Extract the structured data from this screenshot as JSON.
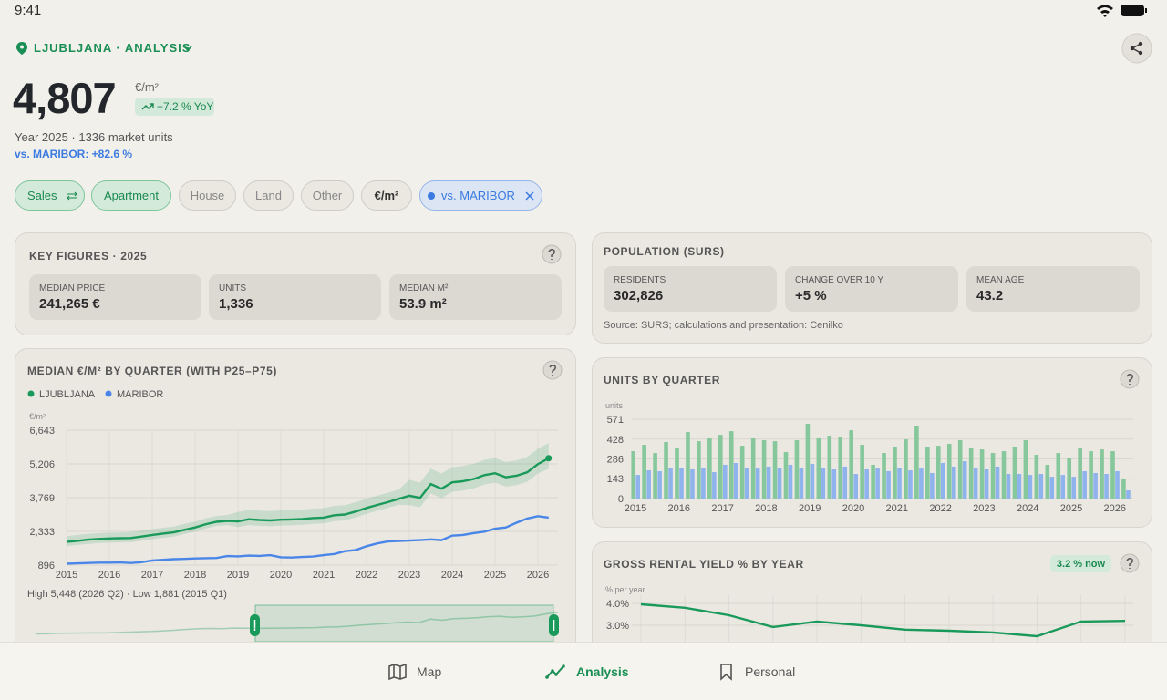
{
  "status_bar": {
    "time": "9:41"
  },
  "header": {
    "location": "LJUBLJANA · ANALYSIS"
  },
  "summary": {
    "price": "4,807",
    "unit": "€/m²",
    "change": "+7.2 % YoY",
    "details": "Year 2025 · 1336 market units",
    "comparison": "vs. MARIBOR: +82.6 %"
  },
  "filters": [
    "Sales",
    "Apartment",
    "House",
    "Land",
    "Other",
    "€/m²",
    "vs. MARIBOR"
  ],
  "key_figures": {
    "title": "KEY FIGURES · 2025",
    "items": [
      {
        "label": "MEDIAN PRICE",
        "value": "241,265 €"
      },
      {
        "label": "UNITS",
        "value": "1,336"
      },
      {
        "label": "MEDIAN M²",
        "value": "53.9 m²"
      }
    ]
  },
  "population": {
    "title": "POPULATION (SURS)",
    "items": [
      {
        "label": "RESIDENTS",
        "value": "302,826"
      },
      {
        "label": "CHANGE OVER 10 Y",
        "value": "+5 %"
      },
      {
        "label": "MEAN AGE",
        "value": "43.2"
      }
    ],
    "source": "Source: SURS; calculations and presentation: Cenilko"
  },
  "chart_data": [
    {
      "type": "line",
      "title": "MEDIAN €/M² BY QUARTER (WITH P25–P75)",
      "y_label": "€/m²",
      "categories": [
        "2015",
        null,
        null,
        null,
        "2016",
        null,
        null,
        null,
        "2017",
        null,
        null,
        null,
        "2018",
        null,
        null,
        null,
        "2019",
        null,
        null,
        null,
        "2020",
        null,
        null,
        null,
        "2021",
        null,
        null,
        null,
        "2022",
        null,
        null,
        null,
        "2023",
        null,
        null,
        null,
        "2024",
        null,
        null,
        null,
        "2025",
        null,
        null,
        null,
        "2026",
        null
      ],
      "ylim": [
        896,
        6643
      ],
      "yticks": [
        896,
        {
          "value": 2333,
          "label": "2,333"
        },
        {
          "value": 3769,
          "label": "3,769"
        },
        {
          "value": 5206,
          "label": "5,206"
        },
        {
          "value": 6643,
          "label": "6,643"
        }
      ],
      "grid": true,
      "series": [
        {
          "name": "LJUBLJANA",
          "color": "#1a9a5a",
          "values": [
            1881,
            1930,
            1980,
            2010,
            2030,
            2040,
            2050,
            2110,
            2180,
            2240,
            2290,
            2400,
            2500,
            2640,
            2740,
            2780,
            2760,
            2850,
            2820,
            2800,
            2830,
            2840,
            2860,
            2900,
            2920,
            3020,
            3050,
            3180,
            3330,
            3460,
            3580,
            3720,
            3850,
            3760,
            4350,
            4150,
            4420,
            4470,
            4560,
            4730,
            4810,
            4640,
            4700,
            4850,
            5200,
            5448
          ],
          "p25": [
            1700,
            1750,
            1800,
            1830,
            1850,
            1860,
            1870,
            1930,
            2000,
            2060,
            2110,
            2220,
            2320,
            2460,
            2560,
            2600,
            2510,
            2600,
            2570,
            2550,
            2580,
            2590,
            2610,
            2650,
            2670,
            2770,
            2800,
            2930,
            3080,
            3210,
            3330,
            3470,
            3450,
            3360,
            3950,
            3750,
            4020,
            4070,
            4160,
            4330,
            4410,
            4240,
            4300,
            4450,
            4800,
            5000
          ],
          "p75": [
            2130,
            2180,
            2230,
            2260,
            2280,
            2290,
            2300,
            2360,
            2430,
            2490,
            2540,
            2650,
            2750,
            2890,
            2990,
            3030,
            3160,
            3250,
            3220,
            3200,
            3230,
            3240,
            3260,
            3300,
            3320,
            3420,
            3450,
            3580,
            3730,
            3860,
            3980,
            4120,
            4530,
            4410,
            5000,
            4800,
            5070,
            5120,
            5210,
            5380,
            5460,
            5290,
            5350,
            5500,
            5850,
            6100
          ]
        },
        {
          "name": "MARIBOR",
          "color": "#4a86e8",
          "values": [
            960,
            970,
            985,
            1000,
            1000,
            1010,
            985,
            1020,
            1090,
            1120,
            1150,
            1160,
            1180,
            1190,
            1200,
            1280,
            1270,
            1300,
            1290,
            1320,
            1230,
            1220,
            1240,
            1260,
            1320,
            1370,
            1490,
            1540,
            1700,
            1820,
            1900,
            1920,
            1940,
            1960,
            1990,
            1960,
            2150,
            2180,
            2260,
            2320,
            2450,
            2500,
            2700,
            2880,
            2980,
            2920
          ]
        }
      ],
      "note": "High 5,448 (2026 Q2) · Low 1,881 (2015 Q1)"
    },
    {
      "type": "bar",
      "title": "UNITS BY QUARTER",
      "y_label": "units",
      "categories": [
        "2015",
        null,
        null,
        null,
        "2016",
        null,
        null,
        null,
        "2017",
        null,
        null,
        null,
        "2018",
        null,
        null,
        null,
        "2019",
        null,
        null,
        null,
        "2020",
        null,
        null,
        null,
        "2021",
        null,
        null,
        null,
        "2022",
        null,
        null,
        null,
        "2023",
        null,
        null,
        null,
        "2024",
        null,
        null,
        null,
        "2025",
        null,
        null,
        null,
        "2026",
        null
      ],
      "ylim": [
        0,
        571
      ],
      "yticks": [
        0,
        143,
        286,
        428,
        571
      ],
      "grid": true,
      "series": [
        {
          "color": "#86c79c",
          "values": [
            341,
            387,
            328,
            407,
            367,
            479,
            413,
            433,
            459,
            485,
            380,
            433,
            420,
            413,
            335,
            420,
            538,
            440,
            453,
            446,
            492,
            387,
            243,
            328,
            374,
            426,
            525,
            374,
            380,
            394,
            420,
            367,
            354,
            328,
            341,
            374,
            420,
            315,
            243,
            328,
            289,
            367,
            341,
            354,
            341,
            144
          ]
        },
        {
          "color": "#8fb3ec",
          "values": [
            170,
            203,
            197,
            223,
            223,
            210,
            223,
            190,
            243,
            256,
            223,
            216,
            230,
            223,
            243,
            223,
            249,
            223,
            210,
            230,
            177,
            210,
            216,
            197,
            223,
            203,
            216,
            184,
            256,
            230,
            269,
            223,
            210,
            230,
            177,
            177,
            170,
            177,
            157,
            170,
            157,
            197,
            184,
            177,
            197,
            59
          ]
        }
      ]
    },
    {
      "type": "line",
      "title": "GROSS RENTAL YIELD % BY YEAR",
      "badge": "3.2 % now",
      "y_label": "% per year",
      "categories": [
        null,
        null,
        null,
        null,
        null,
        null,
        null,
        null,
        null,
        null,
        null,
        null
      ],
      "ylim": [
        2.0,
        4.4
      ],
      "yticks": [
        {
          "value": 4,
          "label": "4.0%"
        },
        {
          "value": 3,
          "label": "3.0%"
        }
      ],
      "grid": true,
      "color": "#1a9a5a",
      "values": [
        3.96,
        3.8,
        3.46,
        2.92,
        3.17,
        3.0,
        2.8,
        2.75,
        2.67,
        2.5,
        3.17,
        3.2
      ]
    }
  ],
  "navigation": [
    "Map",
    "Analysis",
    "Personal"
  ]
}
